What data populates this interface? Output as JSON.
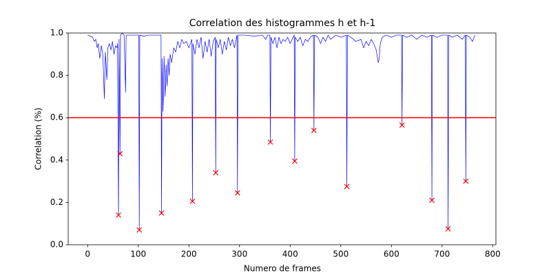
{
  "chart_data": {
    "type": "line",
    "title": "Correlation des histogrammes h et h-1",
    "xlabel": "Numero de frames",
    "ylabel": "Correlation (%)",
    "xlim": [
      -38.4,
      806.4
    ],
    "ylim": [
      0,
      1
    ],
    "xticks": [
      0,
      100,
      200,
      300,
      400,
      500,
      600,
      700,
      800
    ],
    "yticks": [
      {
        "value": 0,
        "label": "0.0"
      },
      0.2,
      0.4,
      0.6,
      0.8,
      {
        "value": 1,
        "label": "1.0"
      }
    ],
    "hlines": [
      {
        "value": 0.6,
        "color": "#ff0000"
      }
    ],
    "series": [
      {
        "color": "#0000ff",
        "marker": "none",
        "linewidth": 0.7,
        "x": [
          0,
          5,
          10,
          13,
          16,
          19,
          21,
          24,
          27,
          30,
          33,
          35,
          38,
          40,
          43,
          46,
          49,
          52,
          55,
          58,
          59,
          61,
          62,
          64,
          65,
          68,
          72,
          75,
          76,
          80,
          90,
          101,
          102,
          103,
          110,
          120,
          130,
          145,
          146,
          147,
          149,
          151,
          153,
          155,
          157,
          159,
          161,
          163,
          166,
          170,
          174,
          178,
          182,
          186,
          190,
          195,
          200,
          206,
          207,
          208,
          212,
          216,
          220,
          224,
          228,
          232,
          236,
          240,
          244,
          248,
          252,
          253,
          254,
          258,
          262,
          266,
          270,
          274,
          278,
          282,
          286,
          290,
          295,
          296,
          297,
          310,
          330,
          345,
          352,
          356,
          360,
          361,
          362,
          366,
          370,
          374,
          378,
          382,
          386,
          390,
          395,
          400,
          408,
          409,
          410,
          415,
          420,
          425,
          430,
          435,
          440,
          446,
          447,
          448,
          455,
          460,
          465,
          470,
          475,
          480,
          490,
          500,
          511,
          512,
          513,
          520,
          530,
          540,
          545,
          550,
          555,
          560,
          565,
          570,
          574,
          576,
          578,
          582,
          590,
          600,
          610,
          620,
          621,
          622,
          630,
          640,
          650,
          660,
          670,
          679,
          680,
          681,
          690,
          700,
          711,
          712,
          713,
          720,
          730,
          740,
          746,
          747,
          748,
          755,
          760,
          765
        ],
        "values": [
          0.99,
          0.985,
          0.98,
          0.96,
          0.97,
          0.93,
          0.95,
          0.88,
          0.94,
          0.9,
          0.69,
          0.91,
          0.78,
          0.93,
          0.95,
          0.92,
          0.96,
          0.9,
          0.94,
          0.93,
          0.95,
          0.14,
          0.97,
          0.43,
          0.99,
          1.0,
          0.99,
          0.72,
          0.99,
          0.99,
          0.99,
          0.99,
          0.07,
          0.99,
          0.985,
          0.99,
          0.99,
          0.99,
          0.15,
          0.88,
          0.63,
          0.89,
          0.7,
          0.85,
          0.75,
          0.88,
          0.8,
          0.9,
          0.86,
          0.93,
          0.91,
          0.96,
          0.93,
          0.97,
          0.95,
          0.96,
          0.93,
          0.97,
          0.205,
          0.95,
          0.9,
          0.97,
          0.93,
          0.98,
          0.88,
          0.96,
          0.91,
          0.97,
          0.89,
          0.96,
          0.98,
          0.34,
          0.97,
          0.93,
          0.97,
          0.9,
          0.96,
          0.92,
          0.98,
          0.94,
          0.97,
          0.93,
          0.99,
          0.245,
          0.99,
          0.99,
          0.985,
          0.99,
          0.97,
          0.99,
          0.99,
          0.485,
          0.98,
          0.95,
          0.98,
          0.93,
          0.98,
          0.95,
          0.97,
          0.96,
          0.98,
          0.95,
          0.99,
          0.395,
          0.98,
          0.96,
          0.98,
          0.94,
          0.97,
          0.96,
          0.98,
          0.99,
          0.54,
          0.99,
          0.98,
          0.95,
          0.98,
          0.96,
          0.99,
          0.97,
          0.99,
          0.98,
          0.99,
          0.275,
          0.99,
          0.98,
          0.96,
          0.97,
          0.93,
          0.96,
          0.94,
          0.97,
          0.95,
          0.92,
          0.86,
          0.88,
          0.95,
          0.98,
          0.99,
          0.98,
          0.99,
          0.99,
          0.565,
          0.99,
          0.98,
          0.99,
          0.97,
          0.99,
          0.98,
          0.99,
          0.21,
          0.99,
          0.98,
          0.99,
          0.99,
          0.075,
          0.99,
          0.98,
          0.99,
          0.97,
          0.99,
          0.3,
          0.99,
          0.98,
          0.96,
          0.99
        ]
      },
      {
        "color": "#ff0000",
        "marker": "x",
        "linestyle": "none",
        "x": [
          61,
          64,
          102,
          146,
          207,
          253,
          296,
          361,
          409,
          447,
          512,
          621,
          680,
          712,
          747
        ],
        "values": [
          0.14,
          0.43,
          0.07,
          0.15,
          0.205,
          0.34,
          0.245,
          0.485,
          0.395,
          0.54,
          0.275,
          0.565,
          0.21,
          0.075,
          0.3
        ]
      }
    ]
  }
}
